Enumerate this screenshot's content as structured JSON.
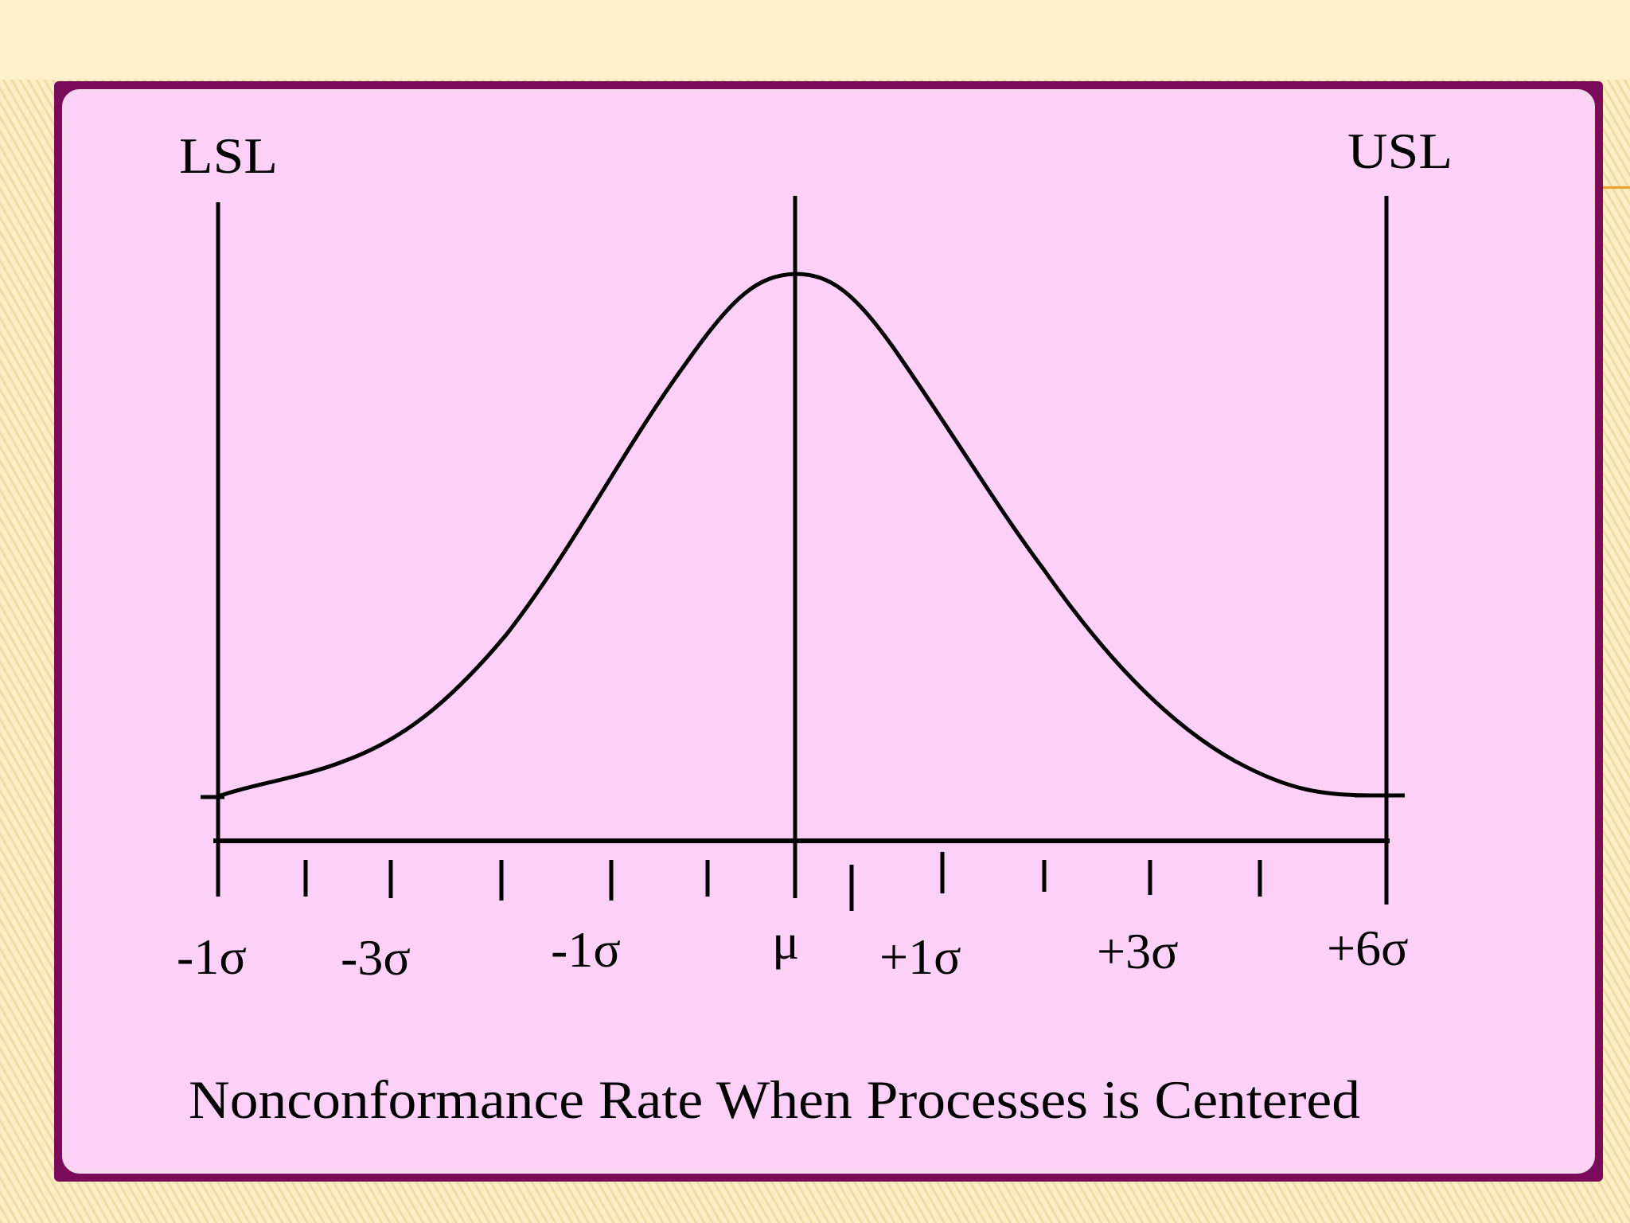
{
  "diagram": {
    "lsl_label": "LSL",
    "usl_label": "USL",
    "mean_label": "μ",
    "sigma_labels": [
      "-1σ",
      "-3σ",
      "-1σ",
      "+1σ",
      "+3σ",
      "+6σ"
    ],
    "caption": "Nonconformance Rate When Processes is Centered"
  },
  "colors": {
    "slide_background": "#fbeec4",
    "frame": "#7a0a5a",
    "panel": "#fdd1f7",
    "ink": "#000000",
    "accent_rule": "#f0a030"
  }
}
